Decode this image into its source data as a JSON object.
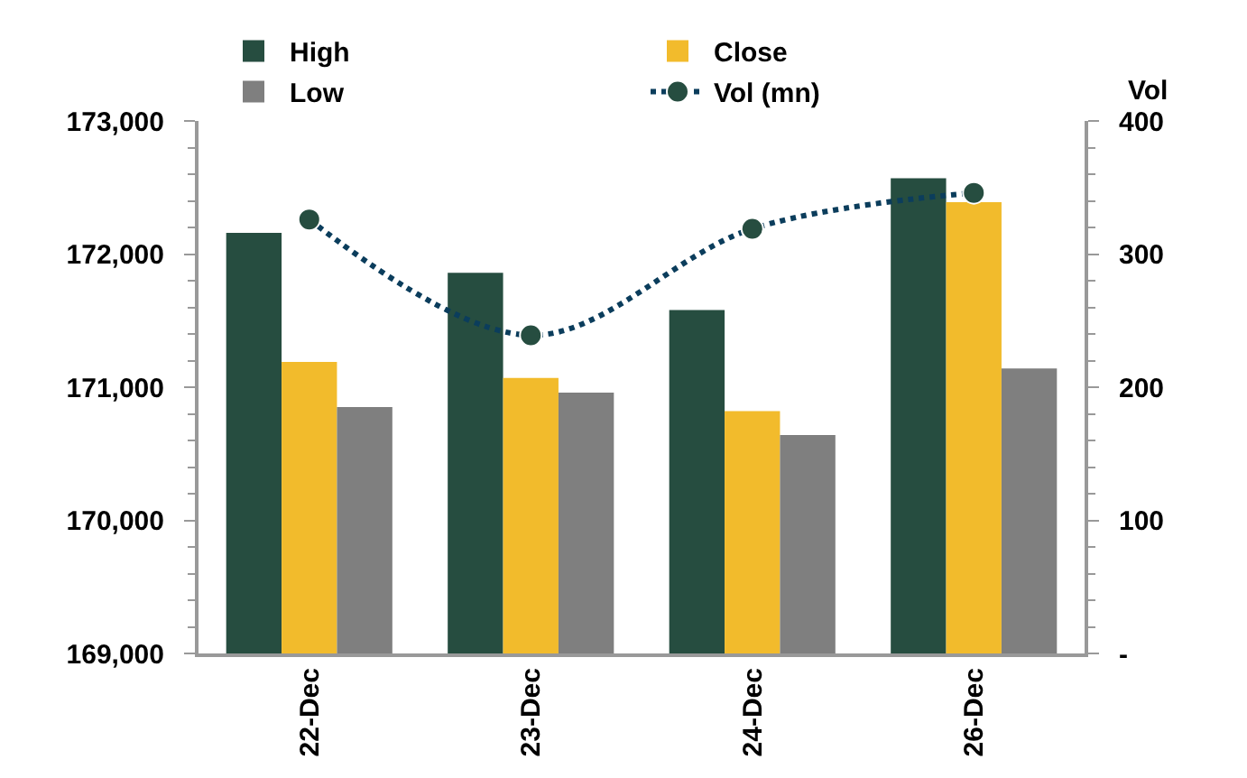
{
  "chart_data": {
    "type": "bar",
    "categories": [
      "22-Dec",
      "23-Dec",
      "24-Dec",
      "26-Dec"
    ],
    "series": [
      {
        "name": "High",
        "color": "#264d40",
        "values": [
          172160,
          171860,
          171580,
          172570
        ]
      },
      {
        "name": "Close",
        "color": "#f2bb2c",
        "values": [
          171190,
          171070,
          170820,
          172390
        ]
      },
      {
        "name": "Low",
        "color": "#7f7f7f",
        "values": [
          170850,
          170960,
          170640,
          171140
        ]
      },
      {
        "name": "Vol (mn)",
        "type": "line",
        "axis": "y2",
        "color": "#0b3d5c",
        "values": [
          326,
          239,
          319,
          346
        ],
        "marker": "circle",
        "line_style": "dotted"
      }
    ],
    "ylim": [
      169000,
      173000
    ],
    "yticks": [
      {
        "value": 169000,
        "label": "169,000"
      },
      {
        "value": 170000,
        "label": "170,000"
      },
      {
        "value": 171000,
        "label": "171,000"
      },
      {
        "value": 172000,
        "label": "172,000"
      },
      {
        "value": 173000,
        "label": "173,000"
      }
    ],
    "y2label": "Vol",
    "y2lim": [
      0,
      400
    ],
    "y2ticks": [
      {
        "value": 0,
        "label": "-"
      },
      100,
      200,
      300,
      400
    ],
    "legend": "top"
  }
}
